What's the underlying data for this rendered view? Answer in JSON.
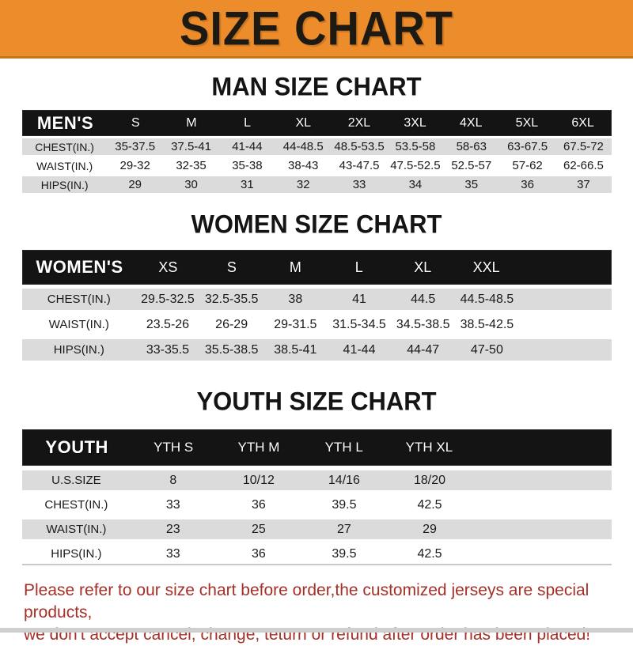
{
  "banner": {
    "title": "SIZE CHART"
  },
  "colors": {
    "banner_bg": "#ED8C2B",
    "banner_border": "#C4761B",
    "header_bar_bg": "#141414",
    "alt_row_bg": "#DBDBDB",
    "footer_text": "#A53028"
  },
  "men": {
    "title": "MAN SIZE CHART",
    "label": "MEN'S",
    "columns": [
      "S",
      "M",
      "L",
      "XL",
      "2XL",
      "3XL",
      "4XL",
      "5XL",
      "6XL"
    ],
    "rows": [
      {
        "label": "CHEST(IN.)",
        "values": [
          "35-37.5",
          "37.5-41",
          "41-44",
          "44-48.5",
          "48.5-53.5",
          "53.5-58",
          "58-63",
          "63-67.5",
          "67.5-72"
        ]
      },
      {
        "label": "WAIST(IN.)",
        "values": [
          "29-32",
          "32-35",
          "35-38",
          "38-43",
          "43-47.5",
          "47.5-52.5",
          "52.5-57",
          "57-62",
          "62-66.5"
        ]
      },
      {
        "label": "HIPS(IN.)",
        "values": [
          "29",
          "30",
          "31",
          "32",
          "33",
          "34",
          "35",
          "36",
          "37"
        ]
      }
    ]
  },
  "women": {
    "title": "WOMEN SIZE CHART",
    "label": "WOMEN'S",
    "columns": [
      "XS",
      "S",
      "M",
      "L",
      "XL",
      "XXL"
    ],
    "rows": [
      {
        "label": "CHEST(IN.)",
        "values": [
          "29.5-32.5",
          "32.5-35.5",
          "38",
          "41",
          "44.5",
          "44.5-48.5"
        ]
      },
      {
        "label": "WAIST(IN.)",
        "values": [
          "23.5-26",
          "26-29",
          "29-31.5",
          "31.5-34.5",
          "34.5-38.5",
          "38.5-42.5"
        ]
      },
      {
        "label": "HIPS(IN.)",
        "values": [
          "33-35.5",
          "35.5-38.5",
          "38.5-41",
          "41-44",
          "44-47",
          "47-50"
        ]
      }
    ]
  },
  "youth": {
    "title": "YOUTH SIZE CHART",
    "label": "YOUTH",
    "columns": [
      "YTH S",
      "YTH M",
      "YTH L",
      "YTH XL"
    ],
    "rows": [
      {
        "label": "U.S.SIZE",
        "values": [
          "8",
          "10/12",
          "14/16",
          "18/20"
        ]
      },
      {
        "label": "CHEST(IN.)",
        "values": [
          "33",
          "36",
          "39.5",
          "42.5"
        ]
      },
      {
        "label": "WAIST(IN.)",
        "values": [
          "23",
          "25",
          "27",
          "29"
        ]
      },
      {
        "label": "HIPS(IN.)",
        "values": [
          "33",
          "36",
          "39.5",
          "42.5"
        ]
      }
    ]
  },
  "footer": {
    "line1": "Please refer to our size chart before order,the customized jerseys are special products,",
    "line2": "we don't accept cancel, change, teturn or refund after order has been placed!"
  }
}
